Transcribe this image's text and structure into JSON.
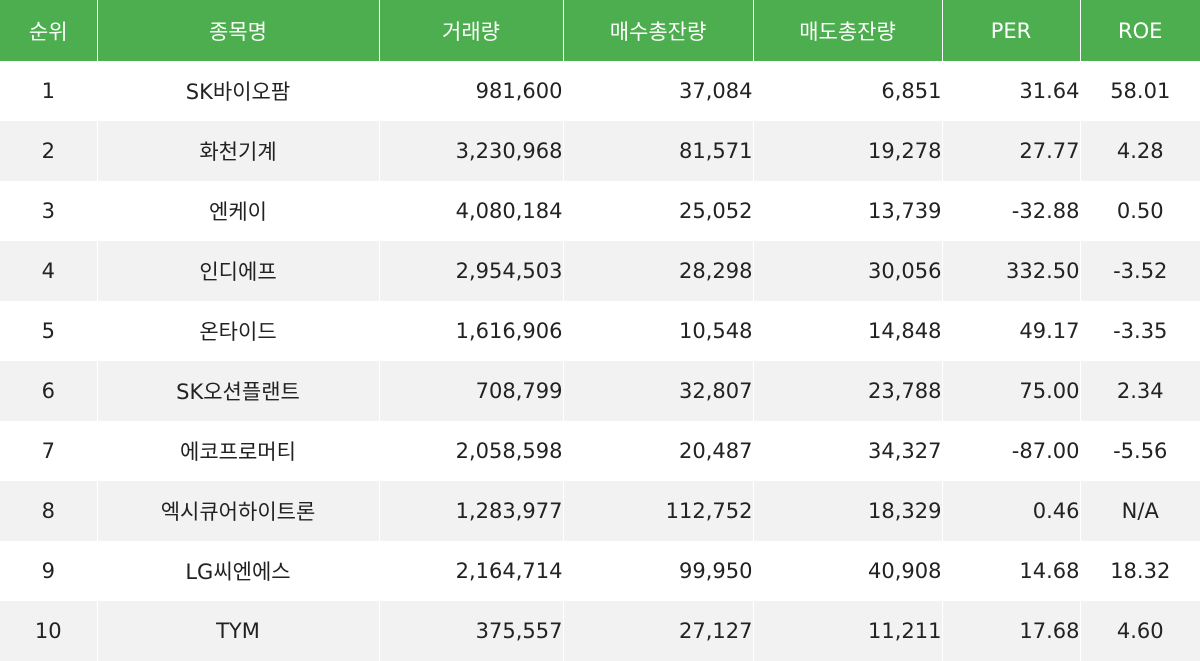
{
  "colors": {
    "header_bg": "#4cae4f",
    "header_text": "#ffffff",
    "row_alt_bg": "#f2f2f2",
    "row_bg": "#ffffff",
    "cell_text": "#222222"
  },
  "table": {
    "headers": [
      "순위",
      "종목명",
      "거래량",
      "매수총잔량",
      "매도총잔량",
      "PER",
      "ROE"
    ],
    "rows": [
      [
        "1",
        "SK바이오팜",
        "981,600",
        "37,084",
        "6,851",
        "31.64",
        "58.01"
      ],
      [
        "2",
        "화천기계",
        "3,230,968",
        "81,571",
        "19,278",
        "27.77",
        "4.28"
      ],
      [
        "3",
        "엔케이",
        "4,080,184",
        "25,052",
        "13,739",
        "-32.88",
        "0.50"
      ],
      [
        "4",
        "인디에프",
        "2,954,503",
        "28,298",
        "30,056",
        "332.50",
        "-3.52"
      ],
      [
        "5",
        "온타이드",
        "1,616,906",
        "10,548",
        "14,848",
        "49.17",
        "-3.35"
      ],
      [
        "6",
        "SK오션플랜트",
        "708,799",
        "32,807",
        "23,788",
        "75.00",
        "2.34"
      ],
      [
        "7",
        "에코프로머티",
        "2,058,598",
        "20,487",
        "34,327",
        "-87.00",
        "-5.56"
      ],
      [
        "8",
        "엑시큐어하이트론",
        "1,283,977",
        "112,752",
        "18,329",
        "0.46",
        "N/A"
      ],
      [
        "9",
        "LG씨엔에스",
        "2,164,714",
        "99,950",
        "40,908",
        "14.68",
        "18.32"
      ],
      [
        "10",
        "TYM",
        "375,557",
        "27,127",
        "11,211",
        "17.68",
        "4.60"
      ]
    ]
  }
}
